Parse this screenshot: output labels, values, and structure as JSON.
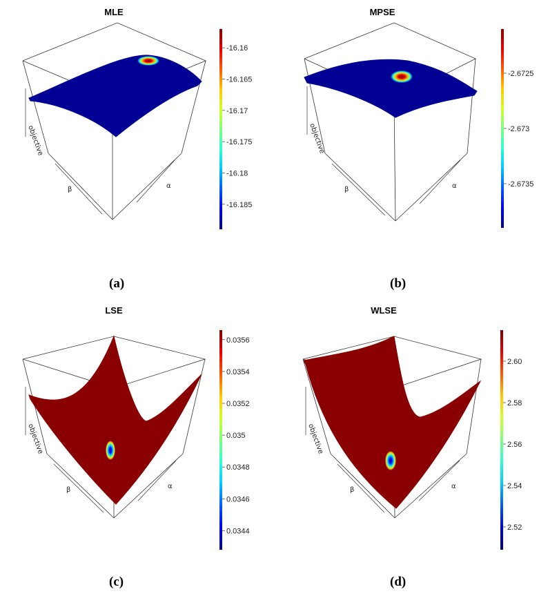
{
  "chart_data": [
    {
      "type": "surface3d",
      "title": "MLE",
      "caption": "(a)",
      "axis_labels": {
        "z": "objective",
        "beta": "β",
        "alpha": "α"
      },
      "shape": "concave",
      "colorbar": {
        "min": -16.189,
        "max": -16.157,
        "ticks": [
          -16.16,
          -16.165,
          -16.17,
          -16.175,
          -16.18,
          -16.185
        ]
      },
      "optimum": {
        "color_value": -16.16
      }
    },
    {
      "type": "surface3d",
      "title": "MPSE",
      "caption": "(b)",
      "axis_labels": {
        "z": "objective",
        "beta": "β",
        "alpha": "α"
      },
      "shape": "concave",
      "colorbar": {
        "min": -2.6739,
        "max": -2.6721,
        "ticks": [
          -2.6725,
          -2.673,
          -2.6735
        ]
      },
      "optimum": {
        "color_value": -2.6725
      }
    },
    {
      "type": "surface3d",
      "title": "LSE",
      "caption": "(c)",
      "axis_labels": {
        "z": "objective",
        "beta": "β",
        "alpha": "α"
      },
      "shape": "convex",
      "colorbar": {
        "min": 0.03428,
        "max": 0.03566,
        "ticks": [
          0.0356,
          0.0354,
          0.0352,
          0.035,
          0.0348,
          0.0346,
          0.0344
        ]
      },
      "optimum": {
        "color_value": 0.0346
      }
    },
    {
      "type": "surface3d",
      "title": "WLSE",
      "caption": "(d)",
      "axis_labels": {
        "z": "objective",
        "beta": "β",
        "alpha": "α"
      },
      "shape": "convex",
      "colorbar": {
        "min": 2.509,
        "max": 2.615,
        "ticks": [
          2.6,
          2.58,
          2.56,
          2.54,
          2.52
        ]
      },
      "optimum": {
        "color_value": 2.52
      }
    }
  ]
}
